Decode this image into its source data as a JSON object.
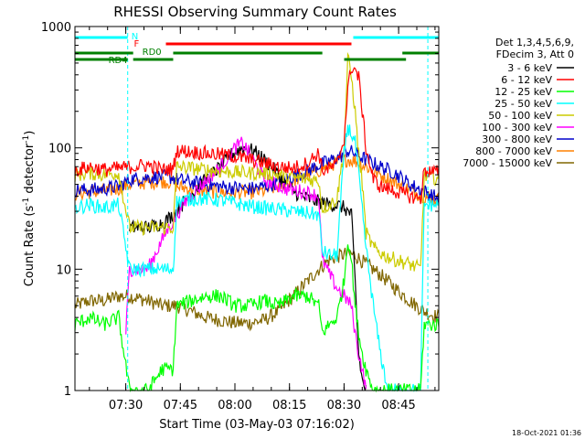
{
  "chart_data": {
    "type": "line",
    "title": "RHESSI Observing Summary Count Rates",
    "xlabel": "Start Time (03-May-03 07:16:02)",
    "ylabel": "Count Rate (s^-1 detector^-1)",
    "ylabel_parts": {
      "main": "Count Rate (s",
      "sup1": "-1",
      "mid": " detector",
      "sup2": "-1",
      "end": ")"
    },
    "yscale": "log",
    "ylim": [
      1,
      1000
    ],
    "xlim_minutes": [
      0,
      100
    ],
    "x_ticks": [
      {
        "label": "07:30",
        "minutes": 13.97
      },
      {
        "label": "07:45",
        "minutes": 28.97
      },
      {
        "label": "08:00",
        "minutes": 43.97
      },
      {
        "label": "08:15",
        "minutes": 58.97
      },
      {
        "label": "08:30",
        "minutes": 73.97
      },
      {
        "label": "08:45",
        "minutes": 88.97
      }
    ],
    "y_ticks": [
      {
        "label": "1",
        "value": 1
      },
      {
        "label": "10",
        "value": 10
      },
      {
        "label": "100",
        "value": 100
      },
      {
        "label": "1000",
        "value": 1000
      }
    ],
    "legend_header": [
      "Det 1,3,4,5,6,9,",
      "FDecim 3, Att 0"
    ],
    "series": [
      {
        "name": "3 - 6 keV",
        "color": "#000000",
        "points": [
          [
            15,
            22
          ],
          [
            20,
            22
          ],
          [
            24,
            24
          ],
          [
            27,
            28
          ],
          [
            30,
            36
          ],
          [
            33,
            45
          ],
          [
            36,
            55
          ],
          [
            40,
            70
          ],
          [
            43,
            88
          ],
          [
            46,
            100
          ],
          [
            49,
            95
          ],
          [
            52,
            80
          ],
          [
            55,
            65
          ],
          [
            58,
            50
          ],
          [
            61,
            42
          ],
          [
            64,
            38
          ],
          [
            67,
            36
          ],
          [
            70,
            34
          ],
          [
            72,
            34
          ],
          [
            74,
            32
          ],
          [
            76,
            28
          ],
          [
            77,
            8
          ],
          [
            78,
            2
          ],
          [
            79,
            1.2
          ],
          [
            80,
            1
          ]
        ]
      },
      {
        "name": "6 - 12 keV",
        "color": "#ff0000",
        "points": [
          [
            0,
            65
          ],
          [
            4,
            70
          ],
          [
            8,
            66
          ],
          [
            12,
            68
          ],
          [
            16,
            70
          ],
          [
            20,
            72
          ],
          [
            24,
            66
          ],
          [
            27,
            67
          ],
          [
            28,
            95
          ],
          [
            32,
            93
          ],
          [
            36,
            90
          ],
          [
            40,
            88
          ],
          [
            44,
            85
          ],
          [
            48,
            80
          ],
          [
            52,
            75
          ],
          [
            56,
            70
          ],
          [
            60,
            68
          ],
          [
            64,
            75
          ],
          [
            67,
            92
          ],
          [
            68,
            65
          ],
          [
            70,
            68
          ],
          [
            72,
            72
          ],
          [
            74,
            120
          ],
          [
            75,
            300
          ],
          [
            76,
            470
          ],
          [
            77,
            440
          ],
          [
            78,
            380
          ],
          [
            79,
            200
          ],
          [
            80,
            100
          ],
          [
            82,
            55
          ],
          [
            84,
            48
          ],
          [
            87,
            45
          ],
          [
            90,
            42
          ],
          [
            92,
            40
          ],
          [
            95,
            38
          ],
          [
            96,
            65
          ],
          [
            100,
            63
          ]
        ]
      },
      {
        "name": "12 - 25 keV",
        "color": "#00ff00",
        "points": [
          [
            0,
            3.5
          ],
          [
            4,
            4
          ],
          [
            8,
            3.5
          ],
          [
            12,
            4
          ],
          [
            15,
            1
          ],
          [
            20,
            1
          ],
          [
            24,
            1.5
          ],
          [
            27,
            1.5
          ],
          [
            28,
            5
          ],
          [
            32,
            5.5
          ],
          [
            36,
            6
          ],
          [
            40,
            6
          ],
          [
            44,
            5
          ],
          [
            48,
            5
          ],
          [
            52,
            5.5
          ],
          [
            56,
            5
          ],
          [
            60,
            6
          ],
          [
            64,
            6
          ],
          [
            67,
            5
          ],
          [
            68,
            3
          ],
          [
            70,
            3.5
          ],
          [
            72,
            4
          ],
          [
            74,
            8
          ],
          [
            75,
            18
          ],
          [
            76,
            12
          ],
          [
            77,
            5
          ],
          [
            78,
            3
          ],
          [
            79,
            2
          ],
          [
            80,
            1.5
          ],
          [
            82,
            1
          ],
          [
            90,
            1
          ],
          [
            95,
            1
          ],
          [
            96,
            3.5
          ],
          [
            100,
            3.5
          ]
        ]
      },
      {
        "name": "25 - 50 keV",
        "color": "#00ffff",
        "points": [
          [
            0,
            32
          ],
          [
            4,
            34
          ],
          [
            8,
            32
          ],
          [
            12,
            34
          ],
          [
            15,
            10
          ],
          [
            20,
            10
          ],
          [
            24,
            10
          ],
          [
            27,
            10
          ],
          [
            28,
            36
          ],
          [
            32,
            38
          ],
          [
            36,
            38
          ],
          [
            40,
            37
          ],
          [
            44,
            35
          ],
          [
            48,
            33
          ],
          [
            52,
            32
          ],
          [
            56,
            31
          ],
          [
            60,
            30
          ],
          [
            64,
            29
          ],
          [
            67,
            28
          ],
          [
            68,
            14
          ],
          [
            70,
            13
          ],
          [
            72,
            13
          ],
          [
            74,
            90
          ],
          [
            75,
            150
          ],
          [
            76,
            130
          ],
          [
            77,
            110
          ],
          [
            78,
            60
          ],
          [
            79,
            30
          ],
          [
            80,
            15
          ],
          [
            82,
            5
          ],
          [
            84,
            2
          ],
          [
            86,
            1
          ],
          [
            95,
            1
          ],
          [
            96,
            34
          ],
          [
            100,
            34
          ]
        ]
      },
      {
        "name": "50 - 100 keV",
        "color": "#cccc00",
        "points": [
          [
            0,
            60
          ],
          [
            4,
            62
          ],
          [
            8,
            60
          ],
          [
            12,
            62
          ],
          [
            15,
            22
          ],
          [
            20,
            22
          ],
          [
            24,
            22
          ],
          [
            27,
            22
          ],
          [
            28,
            70
          ],
          [
            32,
            68
          ],
          [
            36,
            66
          ],
          [
            40,
            64
          ],
          [
            44,
            63
          ],
          [
            48,
            62
          ],
          [
            52,
            62
          ],
          [
            56,
            60
          ],
          [
            60,
            57
          ],
          [
            64,
            55
          ],
          [
            67,
            54
          ],
          [
            68,
            32
          ],
          [
            70,
            34
          ],
          [
            72,
            38
          ],
          [
            74,
            100
          ],
          [
            75,
            550
          ],
          [
            76,
            380
          ],
          [
            77,
            200
          ],
          [
            78,
            90
          ],
          [
            79,
            50
          ],
          [
            80,
            20
          ],
          [
            82,
            15
          ],
          [
            85,
            13
          ],
          [
            88,
            12
          ],
          [
            92,
            11
          ],
          [
            95,
            10
          ],
          [
            96,
            58
          ],
          [
            100,
            56
          ]
        ]
      },
      {
        "name": "100 - 300 keV",
        "color": "#ff00ff",
        "points": [
          [
            14,
            3
          ],
          [
            15,
            10
          ],
          [
            20,
            10
          ],
          [
            25,
            20
          ],
          [
            30,
            35
          ],
          [
            35,
            50
          ],
          [
            40,
            70
          ],
          [
            44,
            100
          ],
          [
            46,
            110
          ],
          [
            48,
            90
          ],
          [
            50,
            70
          ],
          [
            52,
            55
          ],
          [
            55,
            50
          ],
          [
            58,
            46
          ],
          [
            62,
            44
          ],
          [
            65,
            42
          ],
          [
            67,
            40
          ],
          [
            68,
            12
          ],
          [
            70,
            9
          ],
          [
            72,
            7
          ],
          [
            74,
            6
          ],
          [
            76,
            5
          ],
          [
            77,
            3
          ],
          [
            78,
            2
          ],
          [
            79,
            1.5
          ],
          [
            80,
            1
          ]
        ]
      },
      {
        "name": "300 - 800 keV",
        "color": "#0000cc",
        "points": [
          [
            0,
            45
          ],
          [
            4,
            45
          ],
          [
            8,
            46
          ],
          [
            12,
            48
          ],
          [
            15,
            55
          ],
          [
            20,
            57
          ],
          [
            24,
            58
          ],
          [
            27,
            57
          ],
          [
            28,
            55
          ],
          [
            32,
            52
          ],
          [
            36,
            50
          ],
          [
            40,
            48
          ],
          [
            44,
            47
          ],
          [
            48,
            46
          ],
          [
            52,
            48
          ],
          [
            56,
            52
          ],
          [
            60,
            58
          ],
          [
            64,
            65
          ],
          [
            67,
            72
          ],
          [
            70,
            78
          ],
          [
            73,
            85
          ],
          [
            75,
            95
          ],
          [
            77,
            90
          ],
          [
            80,
            80
          ],
          [
            84,
            70
          ],
          [
            88,
            62
          ],
          [
            92,
            50
          ],
          [
            96,
            44
          ],
          [
            100,
            38
          ]
        ]
      },
      {
        "name": "800 - 7000 keV",
        "color": "#ff8000",
        "points": [
          [
            0,
            42
          ],
          [
            4,
            43
          ],
          [
            8,
            44
          ],
          [
            12,
            46
          ],
          [
            15,
            50
          ],
          [
            20,
            52
          ],
          [
            24,
            53
          ],
          [
            27,
            52
          ],
          [
            28,
            48
          ],
          [
            32,
            46
          ],
          [
            36,
            44
          ],
          [
            40,
            43
          ],
          [
            44,
            43
          ],
          [
            48,
            43
          ],
          [
            52,
            44
          ],
          [
            56,
            48
          ],
          [
            60,
            54
          ],
          [
            64,
            60
          ],
          [
            67,
            65
          ],
          [
            70,
            72
          ],
          [
            73,
            78
          ],
          [
            75,
            80
          ],
          [
            77,
            78
          ],
          [
            80,
            70
          ],
          [
            84,
            60
          ],
          [
            88,
            52
          ],
          [
            92,
            45
          ],
          [
            96,
            40
          ],
          [
            100,
            37
          ]
        ]
      },
      {
        "name": "7000 - 15000 keV",
        "color": "#806600",
        "points": [
          [
            0,
            5
          ],
          [
            4,
            5.5
          ],
          [
            8,
            5.5
          ],
          [
            12,
            6
          ],
          [
            15,
            6
          ],
          [
            20,
            5.5
          ],
          [
            24,
            5
          ],
          [
            28,
            5
          ],
          [
            32,
            4.5
          ],
          [
            36,
            4
          ],
          [
            40,
            3.8
          ],
          [
            44,
            3.6
          ],
          [
            48,
            3.6
          ],
          [
            52,
            3.8
          ],
          [
            56,
            4.5
          ],
          [
            60,
            6
          ],
          [
            64,
            8
          ],
          [
            67,
            10
          ],
          [
            70,
            12
          ],
          [
            73,
            13
          ],
          [
            75,
            13.5
          ],
          [
            77,
            13
          ],
          [
            80,
            11
          ],
          [
            84,
            9
          ],
          [
            88,
            7
          ],
          [
            92,
            5.5
          ],
          [
            96,
            4.5
          ],
          [
            100,
            4
          ]
        ]
      }
    ],
    "attenuator_bars": [
      {
        "label": "N",
        "color": "#00ffff",
        "segments": [
          [
            0,
            14.5
          ],
          [
            76.5,
            100
          ]
        ]
      },
      {
        "label": "F",
        "color": "#ff0000",
        "segments": [
          [
            25,
            76
          ]
        ]
      },
      {
        "label": "RD0",
        "color": "#008000",
        "segments": [
          [
            0,
            16
          ],
          [
            27,
            68
          ],
          [
            90,
            100
          ]
        ]
      },
      {
        "label": "RD4",
        "color": "#008000",
        "segments": [
          [
            0,
            14.5
          ],
          [
            16,
            27
          ],
          [
            74,
            91
          ]
        ]
      }
    ],
    "annotations": [
      {
        "text": "N",
        "color": "#00ffff",
        "minutes": 15.5
      },
      {
        "text": "F",
        "color": "#ff0000",
        "minutes": 16.2
      },
      {
        "text": "RD0",
        "color": "#008000",
        "minutes": 18.5
      },
      {
        "text": "RD4",
        "color": "#008000",
        "minutes": 9.2
      }
    ],
    "vertical_dashed_markers_minutes": [
      14.5,
      97
    ]
  },
  "footer": {
    "timestamp": "18-Oct-2021 01:36"
  }
}
